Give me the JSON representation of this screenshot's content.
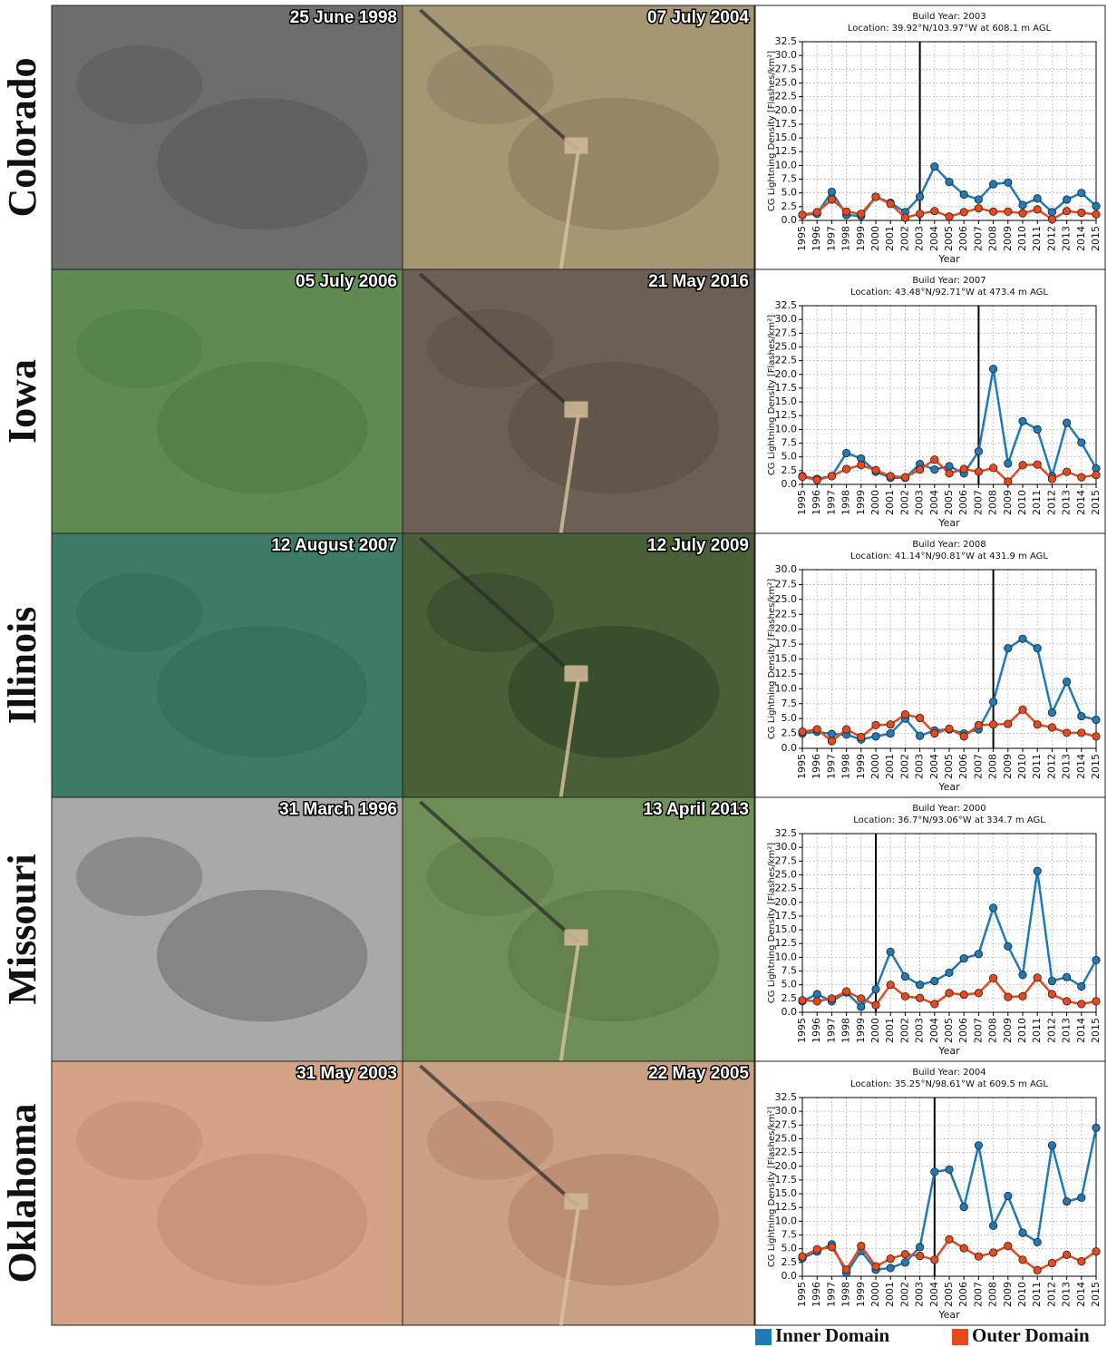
{
  "panels": [
    {
      "state": "Colorado",
      "dates": [
        "25 June 1998",
        "07 July 2004"
      ]
    },
    {
      "state": "Iowa",
      "dates": [
        "05 July 2006",
        "21 May 2016"
      ]
    },
    {
      "state": "Illinois",
      "dates": [
        "12 August 2007",
        "12 July 2009"
      ]
    },
    {
      "state": "Missouri",
      "dates": [
        "31 March 1996",
        "13 April 2013"
      ]
    },
    {
      "state": "Oklahoma",
      "dates": [
        "31 May 2003",
        "22 May 2005"
      ]
    }
  ],
  "legend": [
    "Inner Domain",
    "Outer Domain"
  ],
  "chart_data": [
    {
      "type": "line",
      "title": "Build Year: 2003",
      "subtitle": "Location: 39.92°N/103.97°W at 608.1 m AGL",
      "x_label": "Year",
      "y_label": "CG Lightning Density [Flashes/km²]",
      "vline": 2003,
      "x": [
        1995,
        1996,
        1997,
        1998,
        1999,
        2000,
        2001,
        2002,
        2003,
        2004,
        2005,
        2006,
        2007,
        2008,
        2009,
        2010,
        2011,
        2012,
        2013,
        2014,
        2015
      ],
      "xlim": [
        1995,
        2015
      ],
      "ylim": [
        0,
        32.5
      ],
      "grid": true,
      "yticks": [
        {
          "value": 0,
          "label": "0.0"
        },
        2.5,
        {
          "value": 5,
          "label": "5.0"
        },
        7.5,
        {
          "value": 10,
          "label": "10.0"
        },
        12.5,
        {
          "value": 15,
          "label": "15.0"
        },
        17.5,
        {
          "value": 20,
          "label": "20.0"
        },
        22.5,
        {
          "value": 25,
          "label": "25.0"
        },
        27.5,
        {
          "value": 30,
          "label": "30.0"
        },
        32.5
      ],
      "series": [
        {
          "color": "#1f7ab5",
          "values": [
            1.0,
            1.2,
            5.2,
            1.0,
            0.8,
            4.3,
            3.2,
            1.5,
            4.3,
            9.8,
            7.0,
            4.7,
            3.8,
            6.6,
            6.9,
            2.8,
            4.0,
            1.5,
            3.8,
            5.0,
            2.6
          ]
        },
        {
          "color": "#e8491c",
          "values": [
            1.0,
            1.5,
            3.8,
            1.6,
            1.2,
            4.3,
            3.0,
            0.5,
            1.2,
            1.7,
            0.7,
            1.5,
            2.2,
            1.6,
            1.6,
            1.3,
            2.0,
            0.2,
            1.7,
            1.4,
            1.1
          ]
        }
      ]
    },
    {
      "type": "line",
      "title": "Build Year: 2007",
      "subtitle": "Location: 43.48°N/92.71°W at 473.4 m AGL",
      "x_label": "Year",
      "y_label": "CG Lightning Density [Flashes/km²]",
      "vline": 2007,
      "x": [
        1995,
        1996,
        1997,
        1998,
        1999,
        2000,
        2001,
        2002,
        2003,
        2004,
        2005,
        2006,
        2007,
        2008,
        2009,
        2010,
        2011,
        2012,
        2013,
        2014,
        2015
      ],
      "xlim": [
        1995,
        2015
      ],
      "ylim": [
        0,
        32.5
      ],
      "grid": true,
      "yticks": [
        {
          "value": 0,
          "label": "0.0"
        },
        2.5,
        {
          "value": 5,
          "label": "5.0"
        },
        7.5,
        {
          "value": 10,
          "label": "10.0"
        },
        12.5,
        {
          "value": 15,
          "label": "15.0"
        },
        17.5,
        {
          "value": 20,
          "label": "20.0"
        },
        22.5,
        {
          "value": 25,
          "label": "25.0"
        },
        27.5,
        {
          "value": 30,
          "label": "30.0"
        },
        32.5
      ],
      "series": [
        {
          "color": "#1f7ab5",
          "values": [
            1.5,
            1.0,
            1.5,
            5.7,
            4.7,
            2.3,
            1.2,
            1.2,
            3.7,
            2.7,
            3.3,
            2.0,
            6.0,
            21.0,
            3.8,
            11.5,
            10.0,
            1.5,
            11.2,
            7.6,
            2.9
          ]
        },
        {
          "color": "#e8491c",
          "values": [
            1.4,
            0.8,
            1.5,
            2.8,
            3.5,
            2.6,
            1.5,
            1.3,
            2.7,
            4.5,
            2.0,
            2.8,
            2.3,
            3.0,
            0.5,
            3.5,
            3.6,
            1.0,
            2.3,
            1.3,
            1.7
          ]
        }
      ]
    },
    {
      "type": "line",
      "title": "Build Year: 2008",
      "subtitle": "Location: 41.14°N/90.81°W at 431.9 m AGL",
      "x_label": "Year",
      "y_label": "CG Lightning Density [Flashes/km²]",
      "vline": 2008,
      "x": [
        1995,
        1996,
        1997,
        1998,
        1999,
        2000,
        2001,
        2002,
        2003,
        2004,
        2005,
        2006,
        2007,
        2008,
        2009,
        2010,
        2011,
        2012,
        2013,
        2014,
        2015
      ],
      "xlim": [
        1995,
        2015
      ],
      "ylim": [
        0,
        30
      ],
      "grid": true,
      "yticks": [
        {
          "value": 0,
          "label": "0.0"
        },
        2.5,
        {
          "value": 5,
          "label": "5.0"
        },
        7.5,
        {
          "value": 10,
          "label": "10.0"
        },
        12.5,
        {
          "value": 15,
          "label": "15.0"
        },
        17.5,
        {
          "value": 20,
          "label": "20.0"
        },
        22.5,
        {
          "value": 25,
          "label": "25.0"
        },
        27.5,
        {
          "value": 30,
          "label": "30.0"
        }
      ],
      "series": [
        {
          "color": "#1f7ab5",
          "values": [
            2.5,
            2.8,
            2.4,
            2.3,
            1.5,
            2.0,
            2.5,
            5.0,
            2.1,
            3.0,
            3.2,
            2.5,
            3.2,
            7.8,
            16.8,
            18.4,
            16.8,
            6.0,
            11.2,
            5.4,
            4.8
          ]
        },
        {
          "color": "#e8491c",
          "values": [
            2.8,
            3.2,
            1.2,
            3.2,
            1.9,
            3.9,
            4.0,
            5.7,
            5.1,
            2.5,
            3.3,
            2.0,
            3.9,
            4.0,
            4.1,
            6.5,
            4.0,
            3.5,
            2.6,
            2.6,
            2.0
          ]
        }
      ]
    },
    {
      "type": "line",
      "title": "Build Year: 2000",
      "subtitle": "Location: 36.7°N/93.06°W at 334.7 m AGL",
      "x_label": "Year",
      "y_label": "CG Lightning Density [Flashes/km²]",
      "vline": 2000,
      "x": [
        1995,
        1996,
        1997,
        1998,
        1999,
        2000,
        2001,
        2002,
        2003,
        2004,
        2005,
        2006,
        2007,
        2008,
        2009,
        2010,
        2011,
        2012,
        2013,
        2014,
        2015
      ],
      "xlim": [
        1995,
        2015
      ],
      "ylim": [
        0,
        32.5
      ],
      "grid": true,
      "yticks": [
        {
          "value": 0,
          "label": "0.0"
        },
        2.5,
        {
          "value": 5,
          "label": "5.0"
        },
        7.5,
        {
          "value": 10,
          "label": "10.0"
        },
        12.5,
        {
          "value": 15,
          "label": "15.0"
        },
        17.5,
        {
          "value": 20,
          "label": "20.0"
        },
        22.5,
        {
          "value": 25,
          "label": "25.0"
        },
        27.5,
        {
          "value": 30,
          "label": "30.0"
        },
        32.5
      ],
      "series": [
        {
          "color": "#1f7ab5",
          "values": [
            2.0,
            3.3,
            2.0,
            3.6,
            1.0,
            4.2,
            11.0,
            6.5,
            5.0,
            5.7,
            7.2,
            9.8,
            10.6,
            19.0,
            12.0,
            6.8,
            25.7,
            5.7,
            6.4,
            4.7,
            9.5
          ]
        },
        {
          "color": "#e8491c",
          "values": [
            2.2,
            2.0,
            2.5,
            3.8,
            2.5,
            1.3,
            5.0,
            2.9,
            2.6,
            1.5,
            3.5,
            3.2,
            3.5,
            6.2,
            2.8,
            2.9,
            6.3,
            3.3,
            2.0,
            1.5,
            2.0
          ]
        }
      ]
    },
    {
      "type": "line",
      "title": "Build Year: 2004",
      "subtitle": "Location: 35.25°N/98.61°W at 609.5 m AGL",
      "x_label": "Year",
      "y_label": "CG Lightning Density [Flashes/km²]",
      "vline": 2004,
      "x": [
        1995,
        1996,
        1997,
        1998,
        1999,
        2000,
        2001,
        2002,
        2003,
        2004,
        2005,
        2006,
        2007,
        2008,
        2009,
        2010,
        2011,
        2012,
        2013,
        2014,
        2015
      ],
      "xlim": [
        1995,
        2015
      ],
      "ylim": [
        0,
        32.5
      ],
      "grid": true,
      "yticks": [
        {
          "value": 0,
          "label": "0.0"
        },
        2.5,
        {
          "value": 5,
          "label": "5.0"
        },
        7.5,
        {
          "value": 10,
          "label": "10.0"
        },
        12.5,
        {
          "value": 15,
          "label": "15.0"
        },
        17.5,
        {
          "value": 20,
          "label": "20.0"
        },
        22.5,
        {
          "value": 25,
          "label": "25.0"
        },
        27.5,
        {
          "value": 30,
          "label": "30.0"
        },
        32.5
      ],
      "series": [
        {
          "color": "#1f7ab5",
          "values": [
            3.3,
            4.5,
            5.8,
            0.6,
            4.6,
            1.2,
            1.5,
            2.5,
            5.3,
            19.0,
            19.4,
            12.6,
            23.8,
            9.2,
            14.6,
            7.9,
            6.2,
            23.8,
            13.6,
            14.3,
            27.0
          ]
        },
        {
          "color": "#e8491c",
          "values": [
            3.6,
            4.9,
            5.3,
            1.2,
            5.5,
            1.8,
            3.2,
            4.0,
            3.7,
            3.0,
            6.7,
            5.1,
            3.6,
            4.3,
            5.5,
            3.0,
            1.1,
            2.4,
            3.9,
            2.7,
            4.5
          ]
        }
      ]
    }
  ]
}
